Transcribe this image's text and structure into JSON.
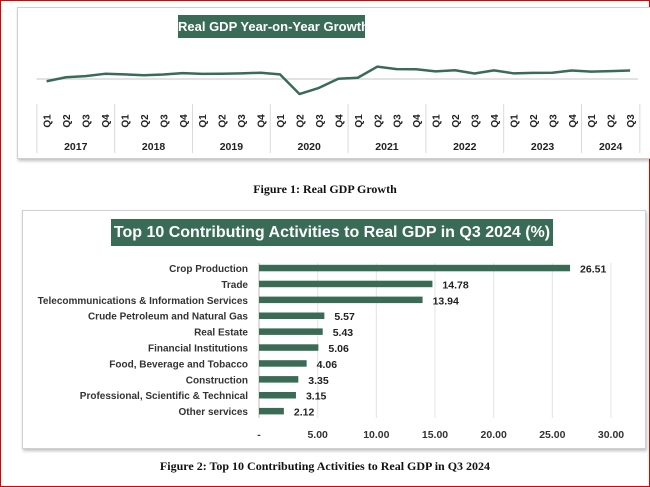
{
  "figure1": {
    "caption": "Figure 1: Real GDP Growth",
    "chart_data": {
      "type": "line",
      "title": "Real GDP Year-on-Year Growth (%)",
      "years": [
        "2017",
        "2018",
        "2019",
        "2020",
        "2021",
        "2022",
        "2023",
        "2024"
      ],
      "quarters_per_year": [
        [
          "Q1",
          "Q2",
          "Q3",
          "Q4"
        ],
        [
          "Q1",
          "Q2",
          "Q3",
          "Q4"
        ],
        [
          "Q1",
          "Q2",
          "Q3",
          "Q4"
        ],
        [
          "Q1",
          "Q2",
          "Q3",
          "Q4"
        ],
        [
          "Q1",
          "Q2",
          "Q3",
          "Q4"
        ],
        [
          "Q1",
          "Q2",
          "Q3",
          "Q4"
        ],
        [
          "Q1",
          "Q2",
          "Q3",
          "Q4"
        ],
        [
          "Q1",
          "Q2",
          "Q3"
        ]
      ],
      "values": [
        -0.91,
        0.72,
        1.17,
        2.11,
        1.89,
        1.5,
        1.81,
        2.38,
        2.1,
        2.12,
        2.28,
        2.55,
        1.87,
        -6.1,
        -3.62,
        0.11,
        0.51,
        5.01,
        4.03,
        3.98,
        3.11,
        3.54,
        2.25,
        3.52,
        2.31,
        2.51,
        2.54,
        3.46,
        2.98,
        3.19,
        3.46
      ],
      "grid": "zero line only",
      "color": "#3a6b56"
    }
  },
  "figure2": {
    "caption": "Figure 2: Top 10 Contributing Activities to Real GDP in Q3 2024",
    "chart_data": {
      "type": "bar",
      "orientation": "horizontal",
      "title": "Top 10 Contributing Activities to Real GDP in Q3 2024 (%)",
      "categories": [
        "Crop Production",
        "Trade",
        "Telecommunications & Information Services",
        "Crude Petroleum and Natural Gas",
        "Real Estate",
        "Financial Institutions",
        "Food, Beverage and Tobacco",
        "Construction",
        "Professional, Scientific & Technical",
        "Other services"
      ],
      "values": [
        26.51,
        14.78,
        13.94,
        5.57,
        5.43,
        5.06,
        4.06,
        3.35,
        3.15,
        2.12
      ],
      "value_labels": [
        "26.51",
        "14.78",
        "13.94",
        "5.57",
        "5.43",
        "5.06",
        "4.06",
        "3.35",
        "3.15",
        "2.12"
      ],
      "xlim": [
        0,
        30
      ],
      "ticks": [
        0,
        5,
        10,
        15,
        20,
        25,
        30
      ],
      "tick_labels": [
        "-",
        "5.00",
        "10.00",
        "15.00",
        "20.00",
        "25.00",
        "30.00"
      ],
      "grid": "vertical",
      "color": "#3a6b56"
    }
  }
}
